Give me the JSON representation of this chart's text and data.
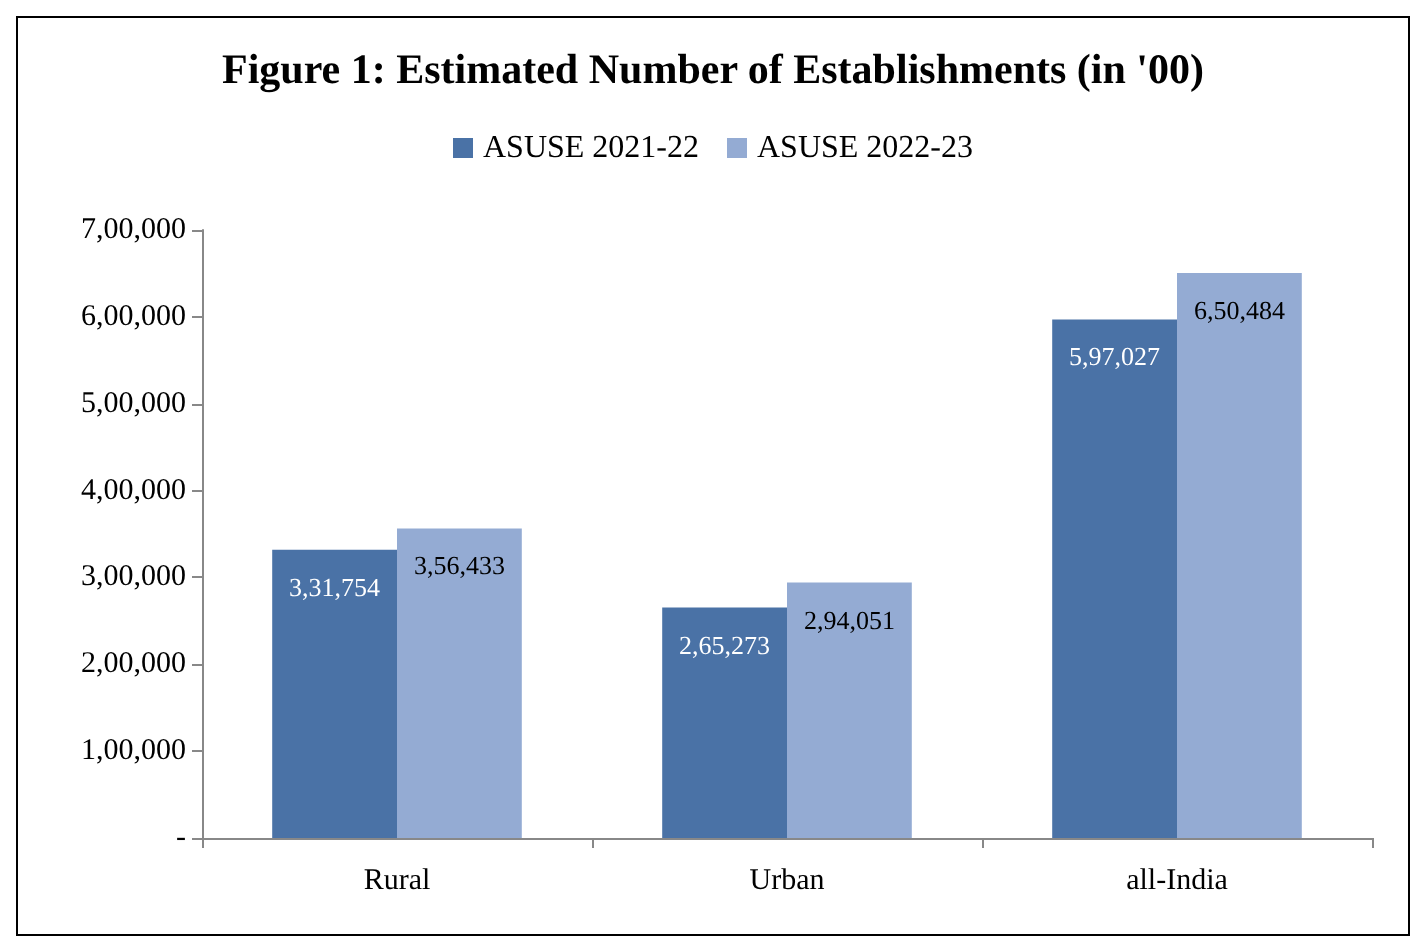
{
  "chart_data": {
    "type": "bar",
    "title": "Figure 1: Estimated Number of Establishments (in '00)",
    "categories": [
      "Rural",
      "Urban",
      "all-India"
    ],
    "series": [
      {
        "name": "ASUSE 2021-22",
        "color": "#4a72a6",
        "values": [
          331754,
          265273,
          597027
        ],
        "value_labels": [
          "3,31,754",
          "2,65,273",
          "5,97,027"
        ]
      },
      {
        "name": "ASUSE 2022-23",
        "color": "#94abd3",
        "values": [
          356433,
          294051,
          650484
        ],
        "value_labels": [
          "3,56,433",
          "2,94,051",
          "6,50,484"
        ]
      }
    ],
    "ylim": [
      0,
      700000
    ],
    "yticks": [
      {
        "value": 0,
        "label": "-"
      },
      {
        "value": 100000,
        "label": "1,00,000"
      },
      {
        "value": 200000,
        "label": "2,00,000"
      },
      {
        "value": 300000,
        "label": "3,00,000"
      },
      {
        "value": 400000,
        "label": "4,00,000"
      },
      {
        "value": 500000,
        "label": "5,00,000"
      },
      {
        "value": 600000,
        "label": "6,00,000"
      },
      {
        "value": 700000,
        "label": "7,00,000"
      }
    ],
    "grid": false,
    "legend": "top"
  }
}
